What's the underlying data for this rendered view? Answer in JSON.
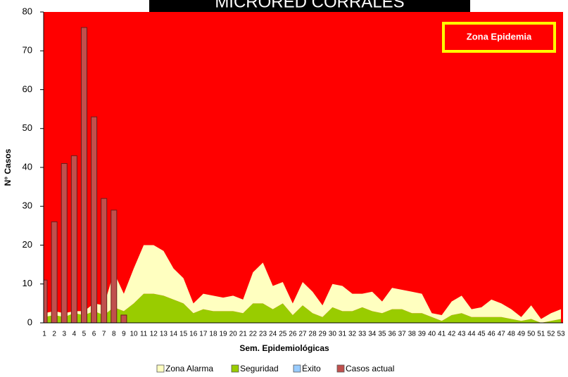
{
  "chart_data": {
    "type": "channel",
    "title": "MICRORED CORRALES",
    "annotation": "Zona Epidemia",
    "background_color": "#ff0000",
    "x_label": "Sem. Epidemiológicas",
    "y_label": "N° Casos",
    "categories": [
      "1",
      "2",
      "3",
      "4",
      "5",
      "6",
      "7",
      "8",
      "9",
      "10",
      "11",
      "12",
      "13",
      "14",
      "15",
      "16",
      "17",
      "18",
      "19",
      "20",
      "21",
      "22",
      "23",
      "24",
      "25",
      "26",
      "27",
      "28",
      "29",
      "30",
      "31",
      "32",
      "33",
      "34",
      "35",
      "36",
      "37",
      "38",
      "39",
      "40",
      "41",
      "42",
      "43",
      "44",
      "45",
      "46",
      "47",
      "48",
      "49",
      "50",
      "51",
      "52",
      "53"
    ],
    "ylim": [
      0,
      80
    ],
    "yticks": [
      0,
      10,
      20,
      30,
      40,
      50,
      60,
      70,
      80
    ],
    "series": [
      {
        "name": "Zona Alarma",
        "color": "#ffffc0",
        "kind": "area",
        "values": [
          1,
          1,
          1,
          0.5,
          1,
          2,
          2.5,
          9,
          4.5,
          9,
          12.5,
          12.5,
          11.5,
          8,
          6.5,
          2.5,
          4,
          4,
          3.5,
          4,
          3.5,
          8,
          10.5,
          6,
          5.5,
          3,
          6,
          5.5,
          3,
          6,
          6.5,
          4.5,
          3.5,
          5,
          3,
          5.5,
          5,
          5.5,
          5,
          1,
          1.5,
          3.5,
          4.5,
          2,
          2.5,
          4.5,
          3.5,
          2.5,
          1,
          3.5,
          1,
          2,
          2.5
        ]
      },
      {
        "name": "Seguridad",
        "color": "#99cc00",
        "kind": "area",
        "values": [
          1.5,
          2,
          1.5,
          2.5,
          2,
          3,
          2,
          4,
          3,
          5,
          7.5,
          7.5,
          7,
          6,
          5,
          2.5,
          3.5,
          3,
          3,
          3,
          2.5,
          5,
          5,
          3.5,
          5,
          2,
          4.5,
          2.5,
          1.5,
          4,
          3,
          3,
          4,
          3,
          2.5,
          3.5,
          3.5,
          2.5,
          2.5,
          1.5,
          0.5,
          2,
          2.5,
          1.5,
          1.5,
          1.5,
          1.5,
          1,
          0.5,
          1,
          0,
          0.5,
          1
        ]
      },
      {
        "name": "Éxito",
        "color": "#99ccff",
        "kind": "area",
        "values": [
          0,
          0,
          0,
          0,
          0,
          0,
          0,
          0,
          0,
          0,
          0,
          0,
          0,
          0,
          0,
          0,
          0,
          0,
          0,
          0,
          0,
          0,
          0,
          0,
          0,
          0,
          0,
          0,
          0,
          0,
          0,
          0,
          0,
          0,
          0,
          0,
          0,
          0,
          0,
          0,
          0,
          0,
          0,
          0,
          0,
          0,
          0,
          0,
          0,
          0,
          0,
          0,
          0
        ]
      },
      {
        "name": "Casos actual",
        "color": "#c0504d",
        "kind": "bar",
        "values": [
          11,
          26,
          41,
          43,
          76,
          53,
          32,
          29,
          2,
          null,
          null,
          null,
          null,
          null,
          null,
          null,
          null,
          null,
          null,
          null,
          null,
          null,
          null,
          null,
          null,
          null,
          null,
          null,
          null,
          null,
          null,
          null,
          null,
          null,
          null,
          null,
          null,
          null,
          null,
          null,
          null,
          null,
          null,
          null,
          null,
          null,
          null,
          null,
          null,
          null,
          null,
          null,
          null
        ]
      }
    ]
  }
}
